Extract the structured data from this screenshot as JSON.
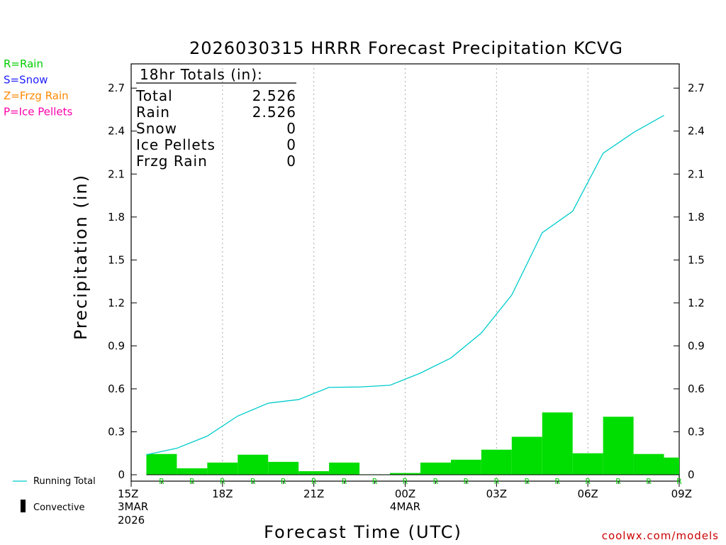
{
  "title": "2026030315 HRRR Forecast Precipitation KCVG",
  "ylabel": "Precipitation (in)",
  "xlabel": "Forecast Time (UTC)",
  "credit": "coolwx.com/models",
  "ptype_legend": [
    {
      "label": "R=Rain",
      "color": "#00cc00"
    },
    {
      "label": "S=Snow",
      "color": "#2222ff"
    },
    {
      "label": "Z=Frzg Rain",
      "color": "#ff8800"
    },
    {
      "label": "P=Ice Pellets",
      "color": "#ff00aa"
    }
  ],
  "series_legend": {
    "running_total": "Running Total",
    "convective": "Convective"
  },
  "totals": {
    "header": "18hr Totals (in):",
    "rows": [
      {
        "label": "Total",
        "value": "2.526"
      },
      {
        "label": "Rain",
        "value": "2.526"
      },
      {
        "label": "Snow",
        "value": "0"
      },
      {
        "label": "Ice Pellets",
        "value": "0"
      },
      {
        "label": "Frzg Rain",
        "value": "0"
      }
    ]
  },
  "colors": {
    "bars": "#00dd00",
    "running_total": "#00cccc",
    "grid": "#aaaaaa",
    "ptype_marker": "#00cc00"
  },
  "chart_data": {
    "type": "bar",
    "x": [
      "16Z",
      "17Z",
      "18Z",
      "19Z",
      "20Z",
      "21Z",
      "22Z",
      "23Z",
      "00Z",
      "01Z",
      "02Z",
      "03Z",
      "04Z",
      "05Z",
      "06Z",
      "07Z",
      "08Z",
      "09Z"
    ],
    "x_ticks": [
      {
        "hour": 0,
        "label": "15Z",
        "sub1": "3MAR",
        "sub2": "2026"
      },
      {
        "hour": 3,
        "label": "18Z"
      },
      {
        "hour": 6,
        "label": "21Z"
      },
      {
        "hour": 9,
        "label": "00Z",
        "sub1": "4MAR"
      },
      {
        "hour": 12,
        "label": "03Z"
      },
      {
        "hour": 15,
        "label": "06Z"
      },
      {
        "hour": 18,
        "label": "09Z"
      }
    ],
    "y_ticks": [
      "0",
      "0.3",
      "0.6",
      "0.9",
      "1.2",
      "1.5",
      "1.8",
      "2.1",
      "2.4",
      "2.7"
    ],
    "ylim": [
      0,
      2.8
    ],
    "xlim": [
      0,
      18
    ],
    "series": [
      {
        "name": "",
        "kind": "bar",
        "values": [
          0.145,
          0.045,
          0.085,
          0.14,
          0.09,
          0.025,
          0.085,
          0.003,
          0.012,
          0.085,
          0.105,
          0.175,
          0.265,
          0.435,
          0.15,
          0.405,
          0.145,
          0.12
        ]
      },
      {
        "name": "Running Total",
        "kind": "line",
        "values": [
          0.14,
          0.185,
          0.27,
          0.41,
          0.5,
          0.525,
          0.61,
          0.613,
          0.625,
          0.71,
          0.815,
          0.99,
          1.255,
          1.69,
          1.84,
          2.245,
          2.39,
          2.51
        ]
      }
    ],
    "ptype": [
      "R",
      "R",
      "R",
      "R",
      "R",
      "R",
      "R",
      "R",
      "R",
      "R",
      "R",
      "R",
      "R",
      "R",
      "R",
      "R",
      "R",
      "R"
    ],
    "grid": "dotted vertical at 3-hour marks"
  }
}
